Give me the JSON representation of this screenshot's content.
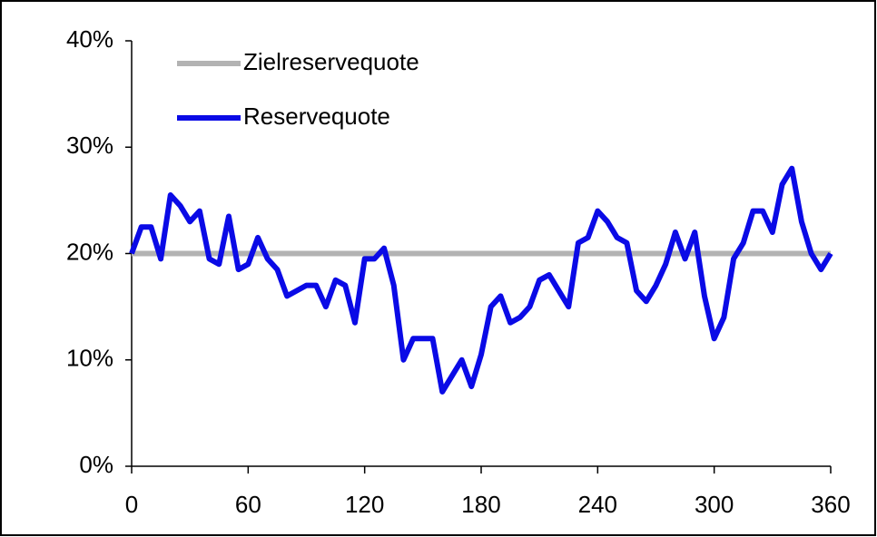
{
  "chart_data": {
    "type": "line",
    "series": [
      {
        "name": "Zielreservequote",
        "color": "#b3b3b3",
        "x": [
          0,
          360
        ],
        "values": [
          20,
          20
        ]
      },
      {
        "name": "Reservequote",
        "color": "#0a0ae6",
        "x": [
          0,
          5,
          10,
          15,
          20,
          25,
          30,
          35,
          40,
          45,
          50,
          55,
          60,
          65,
          70,
          75,
          80,
          85,
          90,
          95,
          100,
          105,
          110,
          115,
          120,
          125,
          130,
          135,
          140,
          145,
          150,
          155,
          160,
          165,
          170,
          175,
          180,
          185,
          190,
          195,
          200,
          205,
          210,
          215,
          220,
          225,
          230,
          235,
          240,
          245,
          250,
          255,
          260,
          265,
          270,
          275,
          280,
          285,
          290,
          295,
          300,
          305,
          310,
          315,
          320,
          325,
          330,
          335,
          340,
          345,
          350,
          355,
          360
        ],
        "values": [
          20,
          22.5,
          22.5,
          19.5,
          25.5,
          24.5,
          23,
          24,
          19.5,
          19,
          23.5,
          18.5,
          19,
          21.5,
          19.5,
          18.5,
          16,
          16.5,
          17,
          17,
          15,
          17.5,
          17,
          13.5,
          19.5,
          19.5,
          20.5,
          17,
          10,
          12,
          12,
          12,
          7,
          8.5,
          10,
          7.5,
          10.5,
          15,
          16,
          13.5,
          14,
          15,
          17.5,
          18,
          16.5,
          15,
          21,
          21.5,
          24,
          23,
          21.5,
          21,
          16.5,
          15.5,
          17,
          19,
          22,
          19.5,
          22,
          16,
          12,
          14,
          19.5,
          21,
          24,
          24,
          22,
          26.5,
          28,
          23,
          20,
          18.5,
          20
        ]
      }
    ],
    "xlim": [
      0,
      360
    ],
    "xticks": [
      0,
      60,
      120,
      180,
      240,
      300,
      360
    ],
    "ylim": [
      0,
      40
    ],
    "yticks": [
      {
        "value": 0,
        "label": "0%"
      },
      {
        "value": 10,
        "label": "10%"
      },
      {
        "value": 20,
        "label": "20%"
      },
      {
        "value": 30,
        "label": "30%"
      },
      {
        "value": 40,
        "label": "40%"
      }
    ],
    "legend": "top-left",
    "grid": false
  }
}
